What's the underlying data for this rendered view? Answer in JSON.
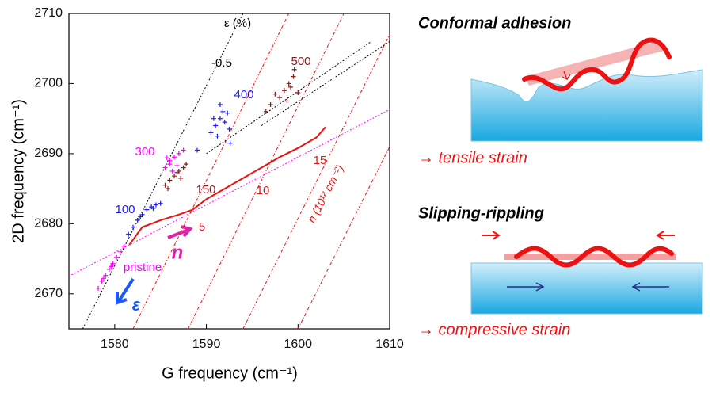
{
  "chart_data": {
    "type": "scatter",
    "x_label": "G frequency (cm⁻¹)",
    "y_label": "2D frequency (cm⁻¹)",
    "xlim": [
      1575,
      1610
    ],
    "ylim": [
      2665,
      2710
    ],
    "xticks": [
      1580,
      1590,
      1600,
      1610
    ],
    "yticks": [
      2670,
      2680,
      2690,
      2700,
      2710
    ],
    "series": [
      {
        "name": "pristine",
        "color": "#ff00ff",
        "x": [
          1578.2,
          1578.6,
          1579,
          1579.4,
          1579.8,
          1580.2,
          1580.6,
          1581,
          1578.8,
          1579.6
        ],
        "values": [
          2670.8,
          2671.8,
          2672.6,
          2673.5,
          2674.3,
          2675.2,
          2676,
          2676.8,
          2672.2,
          2673.9
        ]
      },
      {
        "name": "100",
        "color": "#1a1aff",
        "x": [
          1581.5,
          1582,
          1582.5,
          1583,
          1583.5,
          1584,
          1584.5,
          1585,
          1582.8,
          1584.2
        ],
        "values": [
          2678.5,
          2679.5,
          2680.5,
          2681.3,
          2682,
          2682.4,
          2682.7,
          2682.9,
          2681,
          2682.2
        ]
      },
      {
        "name": "150",
        "color": "#8b1a1a",
        "x": [
          1585.5,
          1586,
          1586.5,
          1587,
          1587.5,
          1586.8,
          1587.2,
          1585.8,
          1587.8
        ],
        "values": [
          2685.5,
          2686.2,
          2686.8,
          2687.5,
          2688,
          2687.3,
          2686.5,
          2685,
          2688.5
        ]
      },
      {
        "name": "300",
        "color": "#ff00ff",
        "x": [
          1585.5,
          1586,
          1586.5,
          1586,
          1587,
          1586.3,
          1585.7,
          1587.5,
          1586.8
        ],
        "values": [
          2688,
          2689,
          2689.5,
          2688.5,
          2690,
          2687.5,
          2689.4,
          2690.5,
          2688.3
        ]
      },
      {
        "name": "400",
        "color": "#1a1aff",
        "x": [
          1590.5,
          1591,
          1591.5,
          1592,
          1592.5,
          1591.8,
          1591.2,
          1592.3,
          1590.8,
          1592.6,
          1589,
          1591.5
        ],
        "values": [
          2693,
          2694,
          2695,
          2694.5,
          2693.5,
          2696,
          2692.5,
          2695.8,
          2695,
          2691.5,
          2690.5,
          2697
        ]
      },
      {
        "name": "500",
        "color": "#8b1a1a",
        "x": [
          1597,
          1598,
          1598.5,
          1599,
          1599.5,
          1598.8,
          1597.5,
          1599.2,
          1600,
          1596.5,
          1599.6
        ],
        "values": [
          2697,
          2698,
          2699,
          2700,
          2701,
          2697.5,
          2698.5,
          2699.5,
          2698.7,
          2696,
          2702
        ]
      }
    ],
    "curve": {
      "color": "#ee1111",
      "x": [
        1581.6,
        1583,
        1585,
        1587,
        1588.5,
        1590,
        1592,
        1594,
        1596,
        1598,
        1600,
        1602,
        1603
      ],
      "values": [
        2677,
        2679.5,
        2680.5,
        2681.3,
        2682,
        2683.5,
        2685,
        2686.5,
        2688,
        2689.5,
        2690.8,
        2692.3,
        2693.8
      ]
    },
    "reference_lines": [
      {
        "color": "#000000",
        "x": [
          1576.5,
          1594
        ],
        "values": [
          2665,
          2710
        ]
      },
      {
        "color": "#ff00ff",
        "x": [
          1575,
          1610
        ],
        "values": [
          2672.5,
          2696.3
        ]
      },
      {
        "color": "#ee1111",
        "x": [
          1582,
          1599
        ],
        "values": [
          2665,
          2710
        ]
      },
      {
        "color": "#ee1111",
        "x": [
          1588,
          1605
        ],
        "values": [
          2665,
          2710
        ]
      },
      {
        "color": "#ee1111",
        "x": [
          1594,
          1610
        ],
        "values": [
          2665,
          2707
        ]
      },
      {
        "color": "#ee1111",
        "x": [
          1600,
          1610
        ],
        "values": [
          2665,
          2691
        ]
      },
      {
        "color": "#000000",
        "x": [
          1590,
          1608
        ],
        "values": [
          2690,
          2706
        ]
      },
      {
        "color": "#000000",
        "x": [
          1596,
          1610
        ],
        "values": [
          2694,
          2706
        ]
      }
    ],
    "annotations": [
      "ε (%)",
      "-0.5",
      "5",
      "10",
      "15",
      "n (10¹² cm⁻²)",
      "n",
      "ε"
    ]
  },
  "panels": [
    {
      "title": "Conformal adhesion",
      "caption": "→ tensile strain"
    },
    {
      "title": "Slipping-rippling",
      "caption": "→ compressive strain"
    }
  ]
}
